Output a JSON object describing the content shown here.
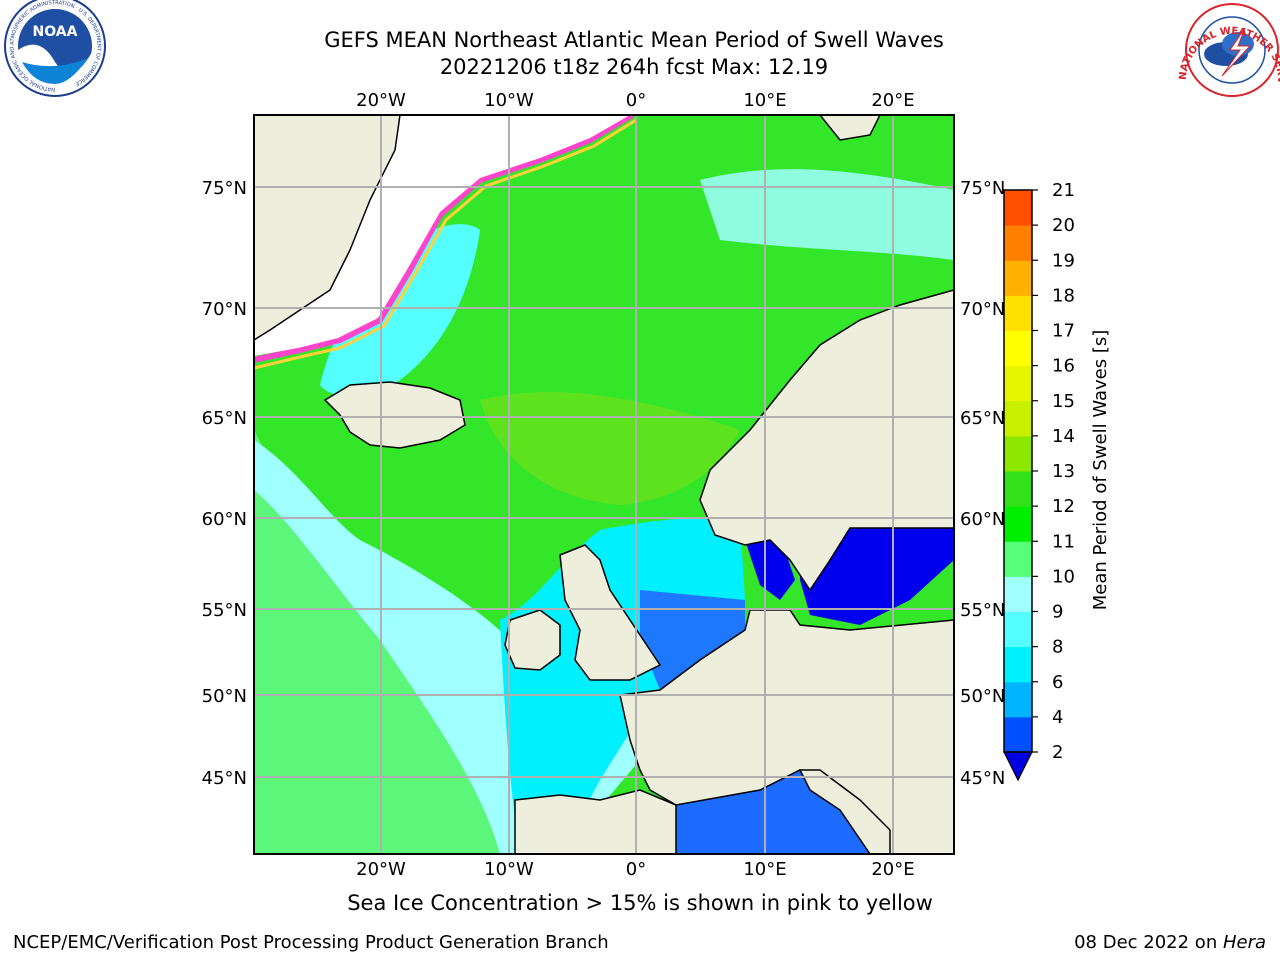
{
  "title": {
    "line1": "GEFS MEAN Northeast Atlantic Mean Period of Swell Waves",
    "line2": "20221206 t18z 264h fcst   Max: 12.19"
  },
  "map": {
    "lon_ticks": [
      "20°W",
      "10°W",
      "0°",
      "10°E",
      "20°E"
    ],
    "lat_ticks": [
      "75°N",
      "70°N",
      "65°N",
      "60°N",
      "55°N",
      "50°N",
      "45°N"
    ]
  },
  "colorbar": {
    "label": "Mean Period of Swell Waves [s]",
    "ticks": [
      "2",
      "4",
      "6",
      "8",
      "9",
      "10",
      "11",
      "12",
      "13",
      "14",
      "15",
      "16",
      "17",
      "18",
      "19",
      "20",
      "21"
    ],
    "colors": [
      "#0050ff",
      "#00b4ff",
      "#00f0ff",
      "#55ffff",
      "#a0ffff",
      "#55ff77",
      "#00ee00",
      "#33e01a",
      "#8ce800",
      "#c8f000",
      "#e8f500",
      "#ffff00",
      "#ffe000",
      "#ffb000",
      "#ff8000",
      "#ff5000",
      "#ff2000",
      "#ff0000"
    ],
    "under_color": "#0000e0"
  },
  "note": "Sea Ice Concentration > 15% is shown in pink to yellow",
  "footer": {
    "left": "NCEP/EMC/Verification Post Processing Product Generation Branch",
    "right_date": "08 Dec 2022 on ",
    "right_host": "Hera"
  },
  "logos": {
    "noaa_text": "NOAA",
    "noaa_ring": "NATIONAL OCEANIC AND ATMOSPHERIC ADMINISTRATION · U.S. DEPARTMENT OF COMMERCE",
    "nws_ring": "NATIONAL WEATHER SERVICE"
  }
}
